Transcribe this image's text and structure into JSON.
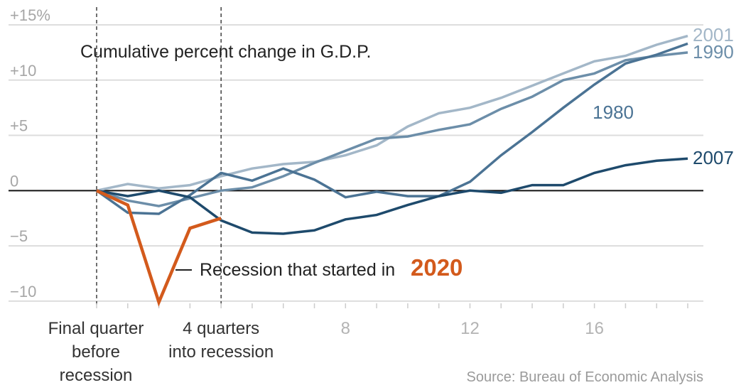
{
  "chart_data": {
    "type": "line",
    "title": "Cumulative percent change in G.D.P.",
    "source": "Source: Bureau of Economic Analysis",
    "xlim": [
      0,
      19
    ],
    "ylim": [
      -10.2,
      15
    ],
    "y_ticks": [
      {
        "value": 15,
        "label": "+15%"
      },
      {
        "value": 10,
        "label": "+10"
      },
      {
        "value": 5,
        "label": "+5"
      },
      {
        "value": 0,
        "label": "0"
      },
      {
        "value": -5,
        "label": "−5"
      },
      {
        "value": -10,
        "label": "−10"
      }
    ],
    "x_ticks": [
      {
        "value": 8,
        "label": "8"
      },
      {
        "value": 12,
        "label": "12"
      },
      {
        "value": 16,
        "label": "16"
      }
    ],
    "x_markers": [
      {
        "value": 0,
        "lines": [
          "Final quarter",
          "before",
          "recession"
        ]
      },
      {
        "value": 4,
        "lines": [
          "4 quarters",
          "into recession"
        ]
      }
    ],
    "series": [
      {
        "name": "2001",
        "color": "#a3b7c8",
        "x": [
          0,
          1,
          2,
          3,
          4,
          5,
          6,
          7,
          8,
          9,
          10,
          11,
          12,
          13,
          14,
          15,
          16,
          17,
          18,
          19
        ],
        "values": [
          0,
          0.6,
          0.2,
          0.5,
          1.3,
          2.0,
          2.4,
          2.6,
          3.2,
          4.1,
          5.8,
          7.0,
          7.5,
          8.4,
          9.5,
          10.6,
          11.7,
          12.2,
          13.2,
          14.0
        ]
      },
      {
        "name": "1990",
        "color": "#6c8ea9",
        "x": [
          0,
          1,
          2,
          3,
          4,
          5,
          6,
          7,
          8,
          9,
          10,
          11,
          12,
          13,
          14,
          15,
          16,
          17,
          18,
          19
        ],
        "values": [
          0,
          -0.9,
          -1.4,
          -0.7,
          0,
          0.3,
          1.3,
          2.5,
          3.6,
          4.7,
          4.9,
          5.5,
          6.0,
          7.4,
          8.5,
          10.0,
          10.6,
          11.8,
          12.2,
          12.5
        ]
      },
      {
        "name": "1980",
        "color": "#4b7394",
        "x": [
          0,
          1,
          2,
          3,
          4,
          5,
          6,
          7,
          8,
          9,
          10,
          11,
          12,
          13,
          14,
          15,
          16,
          17,
          18,
          19
        ],
        "values": [
          0,
          -2.0,
          -2.1,
          -0.4,
          1.6,
          0.9,
          2.0,
          1.0,
          -0.6,
          -0.1,
          -0.5,
          -0.5,
          0.8,
          3.2,
          5.3,
          7.5,
          9.6,
          11.5,
          12.3,
          13.3
        ]
      },
      {
        "name": "2007",
        "color": "#1e4a6c",
        "x": [
          0,
          1,
          2,
          3,
          4,
          5,
          6,
          7,
          8,
          9,
          10,
          11,
          12,
          13,
          14,
          15,
          16,
          17,
          18,
          19
        ],
        "values": [
          0,
          -0.5,
          0,
          -0.6,
          -2.7,
          -3.8,
          -3.9,
          -3.6,
          -2.6,
          -2.2,
          -1.3,
          -0.5,
          0,
          -0.2,
          0.5,
          0.5,
          1.6,
          2.3,
          2.7,
          2.9
        ]
      },
      {
        "name": "2020",
        "color": "#d35a1c",
        "x": [
          0,
          1,
          2,
          3,
          4
        ],
        "values": [
          0,
          -1.3,
          -10.1,
          -3.4,
          -2.5
        ]
      }
    ],
    "annotation": {
      "text": "Recession that started in",
      "year": "2020"
    }
  }
}
